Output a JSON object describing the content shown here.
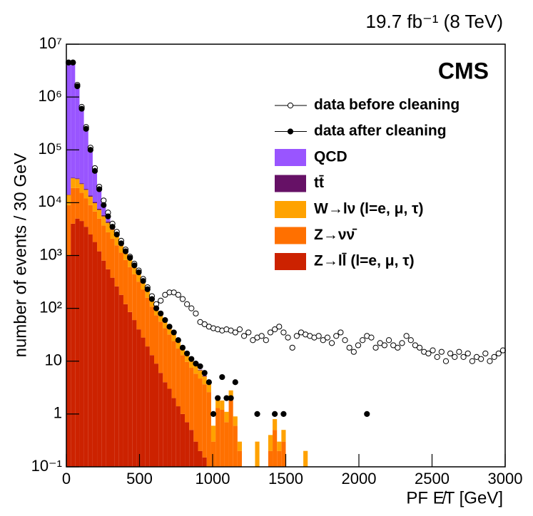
{
  "chart_data": {
    "type": "histogram",
    "stacked": true,
    "title": "19.7 fb⁻¹ (8 TeV)",
    "label": "CMS",
    "xlabel": "PF E̸T [GeV]",
    "ylabel": "number of events / 30 GeV",
    "yscale": "log",
    "xlim": [
      0,
      3000
    ],
    "xticks": [
      0,
      500,
      1000,
      1500,
      2000,
      2500,
      3000
    ],
    "ylim": [
      0.1,
      10000000
    ],
    "yticks": [
      {
        "value": 0.1,
        "label": "10⁻¹"
      },
      1,
      10,
      {
        "value": 100,
        "label": "10²"
      },
      {
        "value": 1000,
        "label": "10³"
      },
      {
        "value": 10000,
        "label": "10⁴"
      },
      {
        "value": 100000,
        "label": "10⁵"
      },
      {
        "value": 1000000,
        "label": "10⁶"
      },
      {
        "value": 10000000,
        "label": "10⁷"
      }
    ],
    "bins": [
      0,
      30,
      60,
      90,
      120,
      150,
      180,
      210,
      240,
      270,
      300,
      330,
      360,
      390,
      420,
      450,
      480,
      510,
      540,
      570,
      600,
      630,
      660,
      690,
      720,
      750,
      780,
      810,
      840,
      870,
      900,
      930,
      960,
      990,
      1020,
      1050,
      1080,
      1110,
      1140,
      1170,
      1200,
      1230,
      1260,
      1290,
      1320,
      1350,
      1380,
      1410,
      1440,
      1470,
      1500,
      1530,
      1560,
      1590,
      1620,
      1650,
      1680
    ],
    "points": [
      {
        "name": "data before cleaning",
        "marker": "open",
        "x": [
          15,
          45,
          75,
          105,
          135,
          165,
          195,
          225,
          255,
          285,
          315,
          345,
          375,
          405,
          435,
          465,
          495,
          525,
          555,
          585,
          615,
          645,
          675,
          705,
          735,
          765,
          795,
          825,
          855,
          885,
          915,
          945,
          975,
          1005,
          1035,
          1065,
          1095,
          1125,
          1155,
          1185,
          1215,
          1245,
          1275,
          1305,
          1335,
          1365,
          1395,
          1425,
          1455,
          1485,
          1515,
          1545,
          1575,
          1605,
          1635,
          1665,
          1695,
          1725,
          1755,
          1785,
          1815,
          1845,
          1875,
          1905,
          1935,
          1965,
          1995,
          2025,
          2055,
          2085,
          2115,
          2145,
          2175,
          2205,
          2235,
          2265,
          2295,
          2325,
          2355,
          2385,
          2415,
          2445,
          2475,
          2505,
          2535,
          2565,
          2595,
          2625,
          2655,
          2685,
          2715,
          2745,
          2775,
          2805,
          2835,
          2865,
          2895,
          2925,
          2955,
          2985
        ],
        "values": [
          4500000,
          4500000,
          1700000,
          650000,
          270000,
          110000,
          45000,
          20000,
          11000,
          6500,
          4000,
          2800,
          1900,
          1300,
          950,
          700,
          520,
          360,
          250,
          170,
          120,
          140,
          180,
          200,
          200,
          180,
          150,
          120,
          100,
          80,
          55,
          50,
          45,
          42,
          40,
          38,
          40,
          38,
          35,
          40,
          30,
          35,
          25,
          28,
          30,
          25,
          35,
          40,
          45,
          35,
          28,
          18,
          30,
          35,
          32,
          30,
          28,
          30,
          25,
          28,
          22,
          30,
          35,
          25,
          18,
          15,
          20,
          25,
          30,
          28,
          18,
          22,
          20,
          25,
          20,
          18,
          22,
          30,
          25,
          20,
          18,
          15,
          14,
          16,
          12,
          15,
          10,
          14,
          12,
          15,
          12,
          14,
          10,
          12,
          11,
          14,
          10,
          12,
          14,
          16
        ]
      },
      {
        "name": "data after cleaning",
        "marker": "filled",
        "x": [
          15,
          45,
          75,
          105,
          135,
          165,
          195,
          225,
          255,
          285,
          315,
          345,
          375,
          405,
          435,
          465,
          495,
          525,
          555,
          585,
          615,
          645,
          675,
          705,
          735,
          765,
          795,
          825,
          855,
          885,
          915,
          945,
          975,
          1005,
          1035,
          1065,
          1095,
          1125,
          1155,
          1305,
          1425,
          1485,
          2055
        ],
        "values": [
          4500000,
          4500000,
          1600000,
          600000,
          250000,
          100000,
          40000,
          18000,
          9000,
          5500,
          3500,
          2500,
          1700,
          1200,
          900,
          650,
          480,
          330,
          230,
          150,
          100,
          80,
          60,
          45,
          35,
          25,
          18,
          14,
          11,
          9,
          8,
          6,
          4,
          1,
          2,
          5,
          2,
          2,
          4,
          1,
          1,
          1,
          1
        ]
      }
    ],
    "series": [
      {
        "name": "QCD",
        "color": "#9955ff",
        "values": [
          4500000,
          4470000,
          1570000,
          580000,
          230000,
          86000,
          30000,
          10000,
          3200,
          1100,
          220,
          40,
          10,
          3,
          1,
          0.5,
          0,
          0,
          0,
          0,
          0,
          0,
          0,
          0,
          0,
          0,
          0,
          0,
          0,
          0,
          0,
          0,
          0,
          0,
          0,
          0,
          0,
          0,
          0,
          0,
          0,
          0,
          0,
          0,
          0,
          0,
          0,
          0,
          0,
          0,
          0,
          0,
          0,
          0,
          0,
          0
        ]
      },
      {
        "name": "tt̄",
        "color": "#661166",
        "values": [
          200,
          800,
          900,
          800,
          700,
          600,
          500,
          400,
          300,
          250,
          200,
          150,
          110,
          80,
          60,
          40,
          30,
          20,
          14,
          9,
          6,
          4,
          3,
          2,
          1.5,
          1,
          0.7,
          0.5,
          0.4,
          0.3,
          0.2,
          0.2,
          0.1,
          0,
          0,
          0,
          0,
          0,
          0,
          0,
          0,
          0,
          0,
          0,
          0,
          0,
          0,
          0,
          0,
          0,
          0,
          0,
          0,
          0,
          0,
          0
        ]
      },
      {
        "name": "W→lν (l=e, μ, τ)",
        "color": "#ffa200",
        "values": [
          5000,
          10000,
          9000,
          7000,
          5500,
          4000,
          3000,
          2300,
          1800,
          1400,
          1000,
          750,
          550,
          400,
          290,
          210,
          150,
          105,
          75,
          50,
          33,
          24,
          17,
          12,
          9,
          7,
          5,
          4,
          3,
          2.5,
          2,
          1.5,
          1.2,
          0.3,
          0.7,
          0.6,
          0.4,
          0.8,
          0.3,
          0.1,
          0,
          0,
          0,
          0.3,
          0,
          0,
          0.2,
          0.3,
          0.1,
          0.2,
          0,
          0,
          0,
          0,
          0.2,
          0
        ]
      },
      {
        "name": "Z→νν̄",
        "color": "#ff7000",
        "values": [
          8000,
          15000,
          14000,
          11000,
          8500,
          6500,
          5000,
          3800,
          2900,
          2200,
          1700,
          1300,
          950,
          700,
          520,
          380,
          280,
          200,
          140,
          95,
          65,
          50,
          38,
          29,
          22,
          16,
          12,
          9,
          7,
          5.5,
          4.5,
          3.5,
          2.5,
          0.3,
          1.3,
          1.2,
          0.7,
          2,
          0.6,
          0.2,
          0,
          0,
          0,
          0,
          0,
          0,
          0.2,
          0.5,
          0.2,
          0.3,
          0,
          0,
          0,
          0,
          0,
          0
        ]
      },
      {
        "name": "Z→ll̄ (l=e, μ, τ)",
        "color": "#cc2200",
        "values": [
          1000,
          4000,
          5000,
          4500,
          3500,
          2500,
          1800,
          1200,
          800,
          550,
          380,
          260,
          180,
          120,
          85,
          60,
          40,
          28,
          19,
          13,
          9,
          6,
          4,
          3,
          2,
          1.4,
          1,
          0.7,
          0.5,
          0.3,
          0.2,
          0.15,
          0.1,
          0,
          0,
          0,
          0,
          0,
          0,
          0,
          0,
          0,
          0,
          0,
          0,
          0,
          0,
          0,
          0,
          0,
          0,
          0,
          0,
          0,
          0,
          0
        ]
      }
    ]
  }
}
